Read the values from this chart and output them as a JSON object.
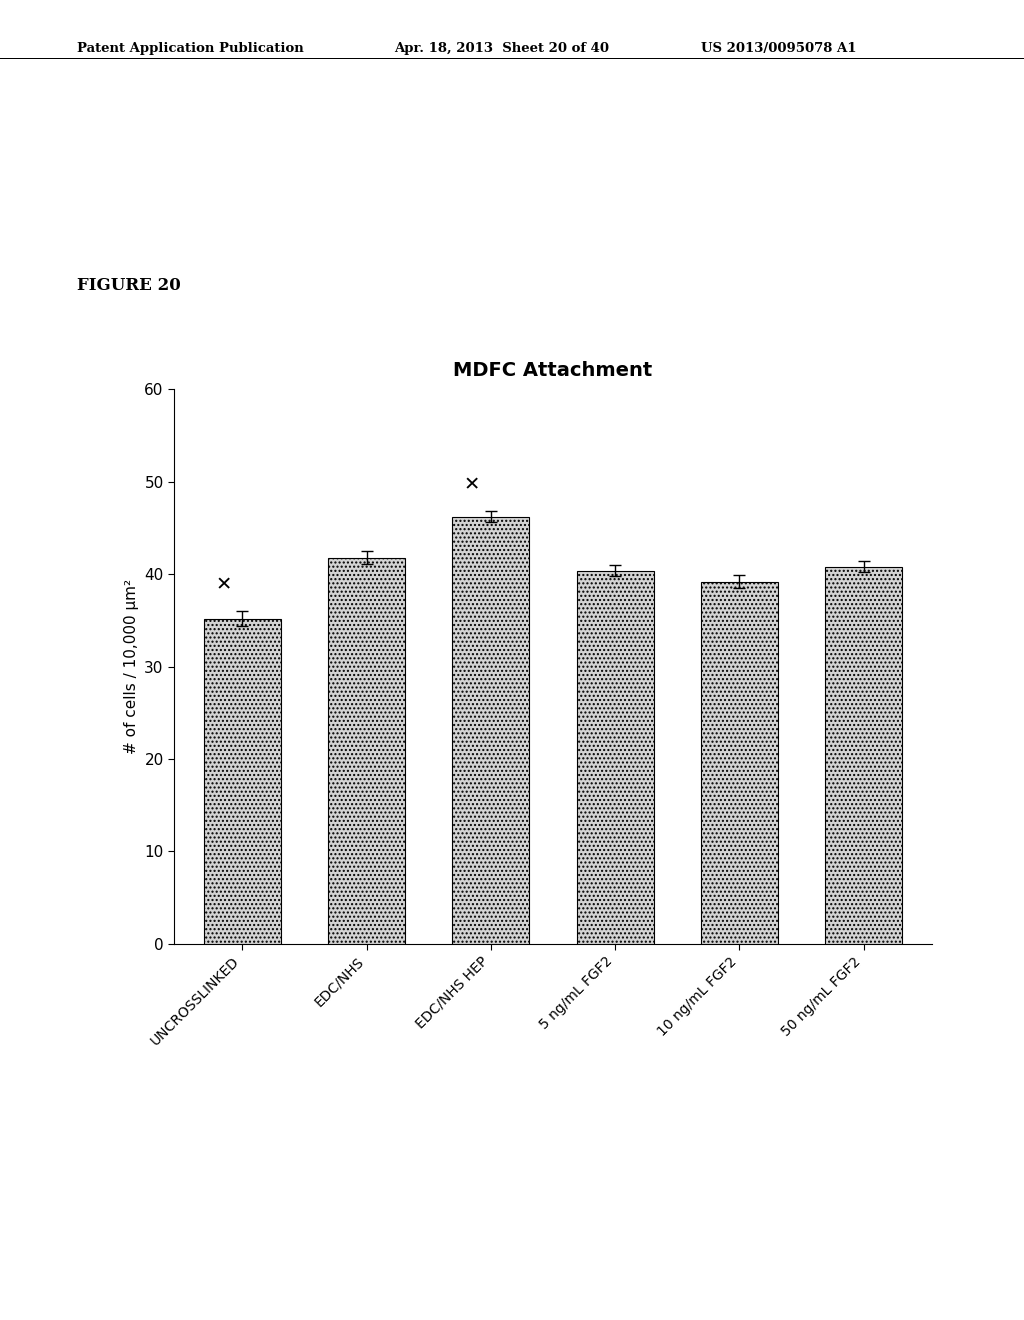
{
  "title": "MDFC Attachment",
  "ylabel": "# of cells / 10,000 μm²",
  "categories": [
    "UNCROSSLINKED",
    "EDC/NHS",
    "EDC/NHS HEP",
    "5 ng/mL FGF2",
    "10 ng/mL FGF2",
    "50 ng/mL FGF2"
  ],
  "values": [
    35.2,
    41.8,
    46.2,
    40.4,
    39.2,
    40.8
  ],
  "errors": [
    0.8,
    0.7,
    0.6,
    0.6,
    0.7,
    0.6
  ],
  "ylim": [
    0,
    60
  ],
  "yticks": [
    0,
    10,
    20,
    30,
    40,
    50,
    60
  ],
  "star_bars": [
    0,
    2
  ],
  "header_left": "Patent Application Publication",
  "header_mid": "Apr. 18, 2013  Sheet 20 of 40",
  "header_right": "US 2013/0095078 A1",
  "figure_label": "FIGURE 20",
  "background_color": "#ffffff"
}
